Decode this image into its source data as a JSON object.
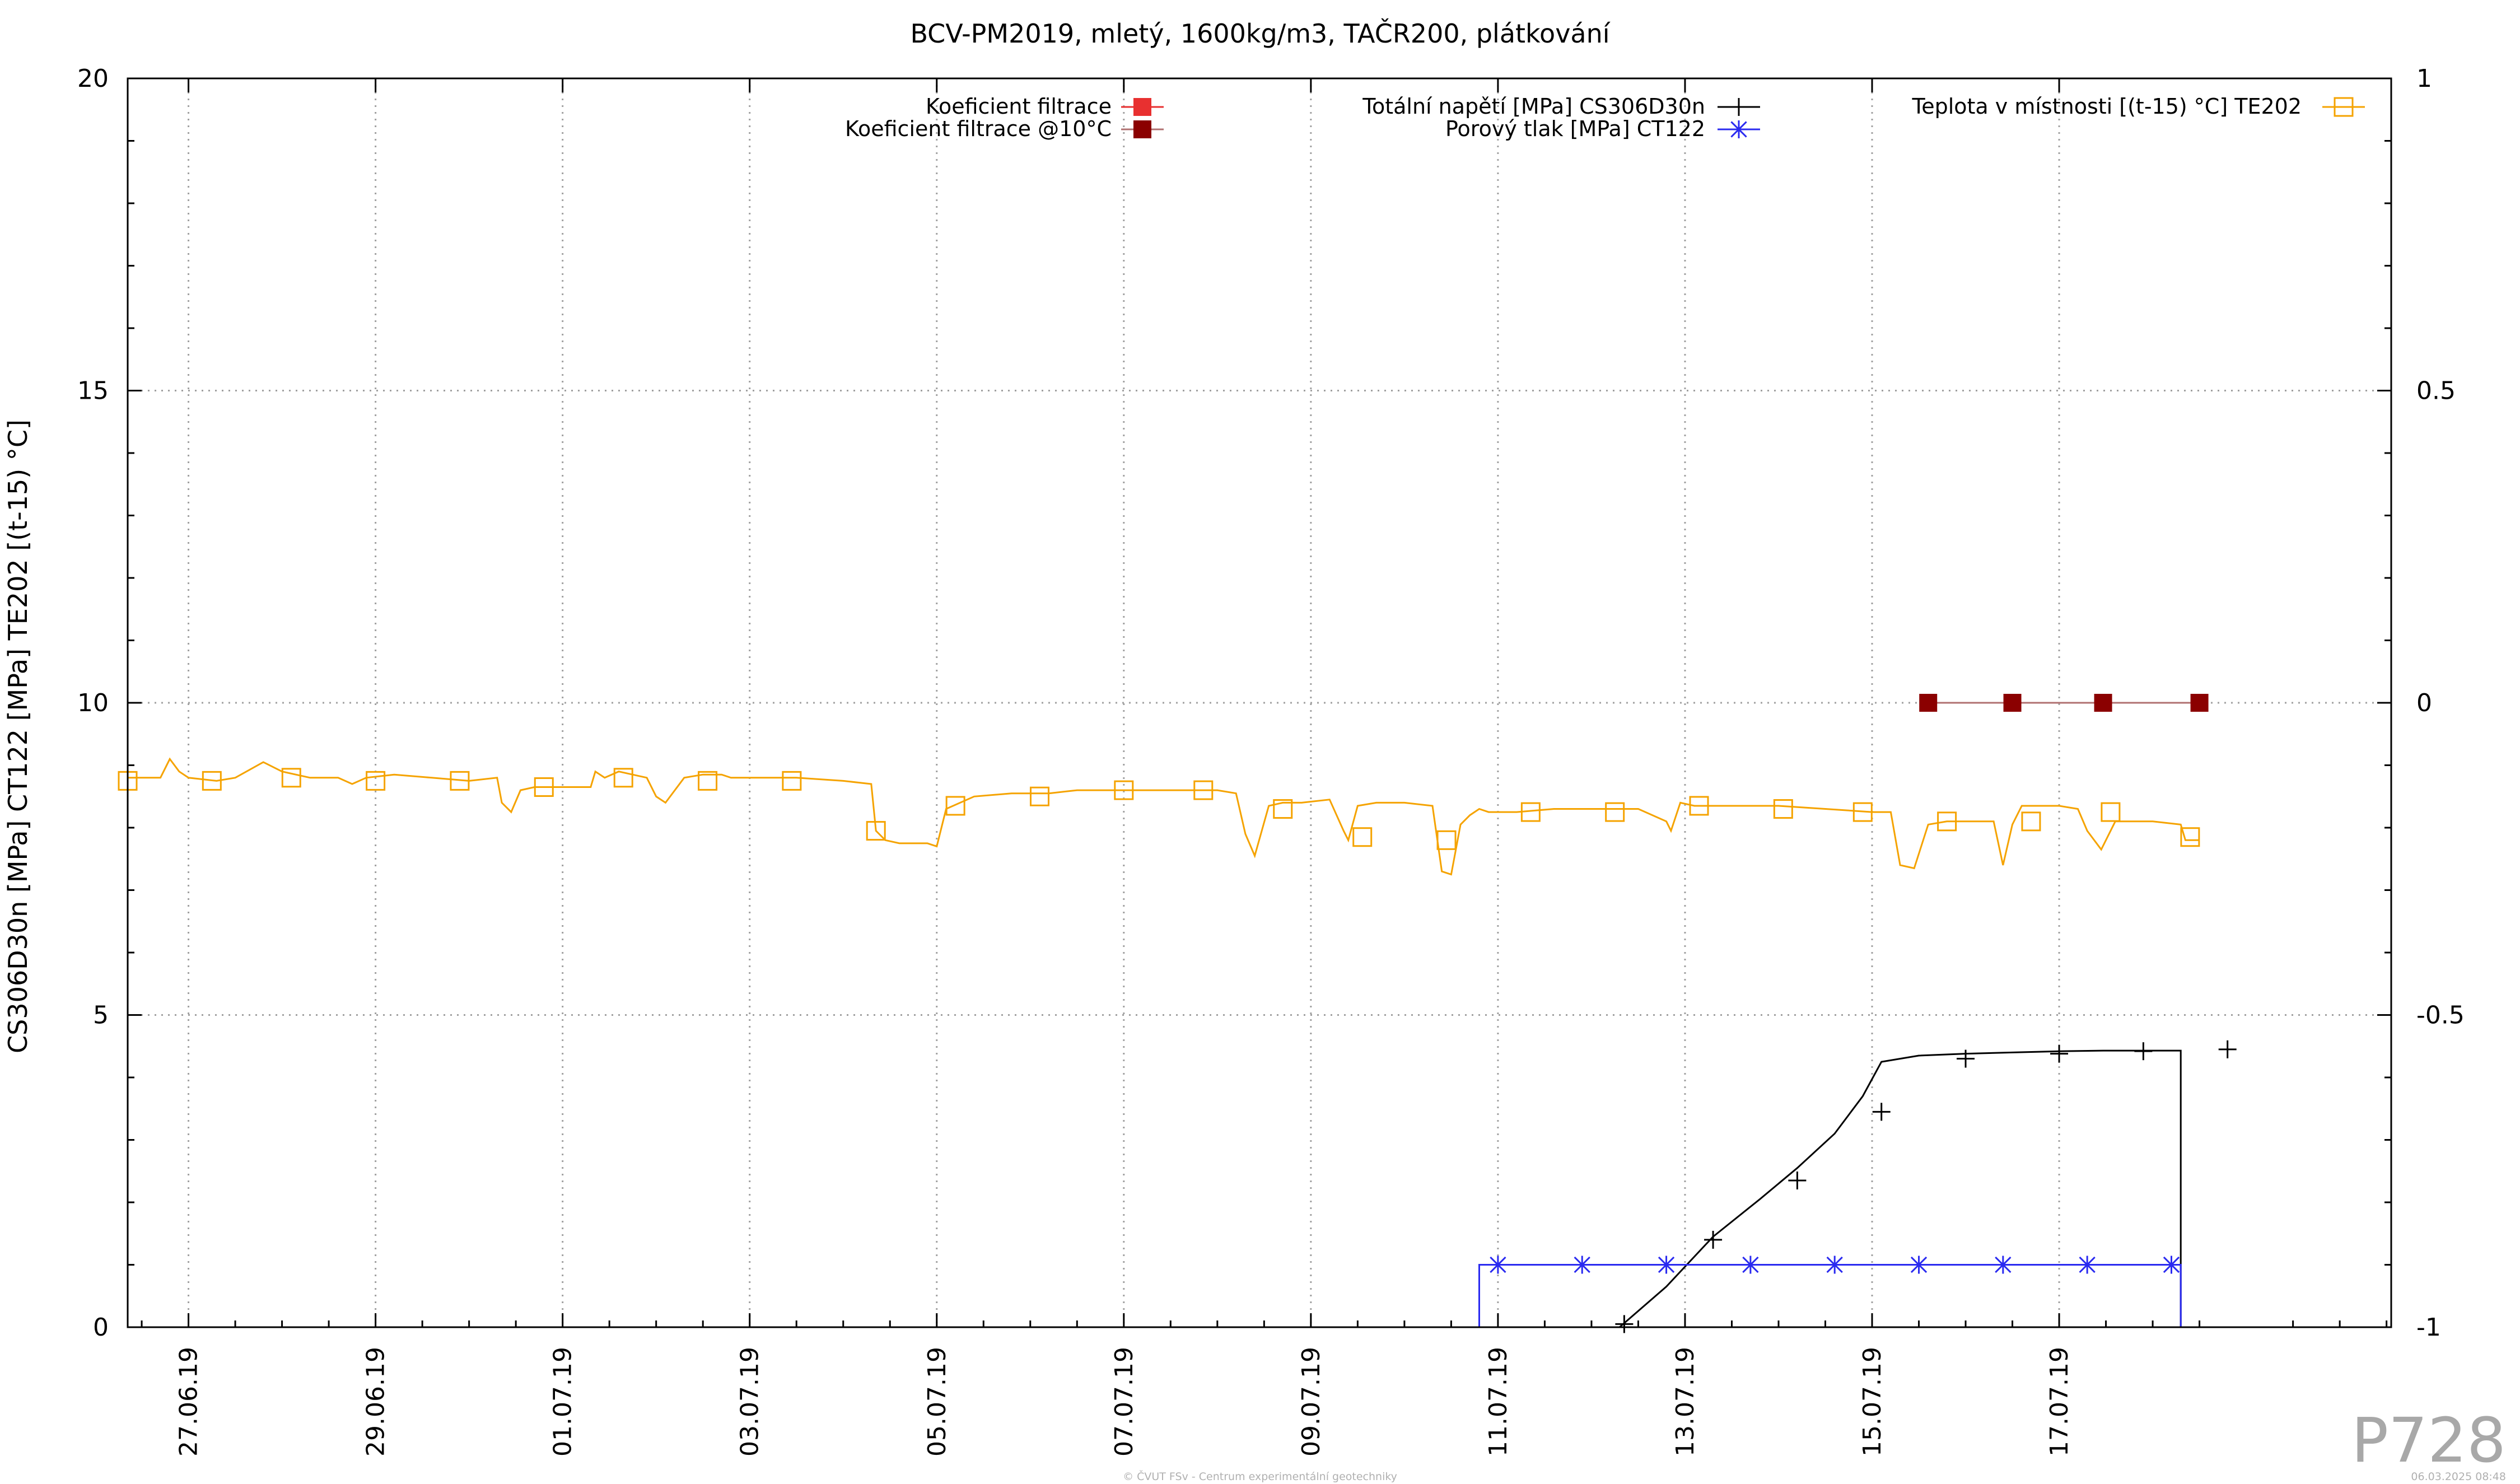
{
  "chart_data": {
    "type": "line",
    "title": "BCV-PM2019, mletý, 1600kg/m3, TAČR200, plátkování",
    "ylabel": "CS306D30n [MPa] CT122 [MPa] TE202 [(t-15) °C]",
    "xlabel": "",
    "ylim": [
      0,
      20
    ],
    "y2lim": [
      -1,
      1
    ],
    "xlim": [
      -0.65,
      23.55
    ],
    "yticks": [
      "0",
      "5",
      "10",
      "15",
      "20"
    ],
    "y2ticks": [
      "-1",
      "-0.5",
      "0",
      "0.5",
      "1"
    ],
    "xticks": [
      {
        "day": 0,
        "label": "27.06.19"
      },
      {
        "day": 2,
        "label": "29.06.19"
      },
      {
        "day": 4,
        "label": "01.07.19"
      },
      {
        "day": 6,
        "label": "03.07.19"
      },
      {
        "day": 8,
        "label": "05.07.19"
      },
      {
        "day": 10,
        "label": "07.07.19"
      },
      {
        "day": 12,
        "label": "09.07.19"
      },
      {
        "day": 14,
        "label": "11.07.19"
      },
      {
        "day": 16,
        "label": "13.07.19"
      },
      {
        "day": 18,
        "label": "15.07.19"
      },
      {
        "day": 20,
        "label": "17.07.19"
      }
    ],
    "grid": true,
    "legend_position": "top",
    "series": [
      {
        "name": "Koeficient filtrace",
        "color": "#e83030",
        "axis": "y2",
        "marker": "square-filled",
        "x": [],
        "y": []
      },
      {
        "name": "Koeficient filtrace @10°C",
        "color": "#8b0000",
        "axis": "y2",
        "marker": "square-filled",
        "line_color": "#b07070",
        "x": [
          18.6,
          19.5,
          20.47,
          21.5
        ],
        "y": [
          0,
          0,
          0,
          0
        ]
      },
      {
        "name": "Totální napětí [MPa] CS306D30n",
        "color": "#000000",
        "axis": "y",
        "marker": "plus",
        "x": [
          15.3,
          15.8,
          16.3,
          16.8,
          17.2,
          17.6,
          17.9,
          18.1,
          18.5,
          19.0,
          19.5,
          20.0,
          20.47
        ],
        "y": [
          0.0,
          0.65,
          1.45,
          2.05,
          2.55,
          3.1,
          3.7,
          4.25,
          4.35,
          4.38,
          4.4,
          4.42,
          4.43
        ],
        "markers_x": [
          15.35,
          16.3,
          17.2,
          18.1,
          19.0,
          20.0,
          20.9,
          21.8
        ],
        "markers_y": [
          0.05,
          1.4,
          2.35,
          3.45,
          4.3,
          4.38,
          4.42,
          4.45
        ],
        "end_x": 21.3
      },
      {
        "name": "Porový tlak [MPa] CT122",
        "color": "#2a2af0",
        "axis": "y",
        "marker": "asterisk",
        "x": [
          13.8,
          13.8,
          21.3,
          21.3
        ],
        "y": [
          0,
          1.0,
          1.0,
          0
        ],
        "markers_x": [
          14.0,
          14.9,
          15.8,
          16.7,
          17.6,
          18.5,
          19.4,
          20.3,
          21.2
        ],
        "markers_y": [
          1.0,
          1.0,
          1.0,
          1.0,
          1.0,
          1.0,
          1.0,
          1.0,
          1.0
        ]
      },
      {
        "name": "Teplota v místnosti [(t-15) °C] TE202",
        "color": "#f5a300",
        "axis": "y",
        "marker": "square-open",
        "x": [
          -0.65,
          -0.3,
          -0.2,
          -0.1,
          0.0,
          0.3,
          0.5,
          0.8,
          1.0,
          1.3,
          1.6,
          1.75,
          1.9,
          2.2,
          2.6,
          3.0,
          3.3,
          3.35,
          3.45,
          3.55,
          3.7,
          4.0,
          4.3,
          4.35,
          4.45,
          4.6,
          4.9,
          5.0,
          5.1,
          5.3,
          5.5,
          5.7,
          5.8,
          6.0,
          6.5,
          7.0,
          7.3,
          7.35,
          7.45,
          7.6,
          7.9,
          8.0,
          8.1,
          8.4,
          8.8,
          9.2,
          9.5,
          10.0,
          10.5,
          11.0,
          11.2,
          11.3,
          11.4,
          11.55,
          11.7,
          11.9,
          12.2,
          12.35,
          12.4,
          12.5,
          12.7,
          13.0,
          13.3,
          13.4,
          13.5,
          13.6,
          13.7,
          13.8,
          13.9,
          14.2,
          14.6,
          15.0,
          15.5,
          15.8,
          15.85,
          15.95,
          16.1,
          16.3,
          16.6,
          17.0,
          17.5,
          18.0,
          18.2,
          18.3,
          18.45,
          18.6,
          18.8,
          19.0,
          19.3,
          19.4,
          19.5,
          19.6,
          20.0,
          20.2,
          20.3,
          20.45,
          20.6,
          21.0,
          21.3,
          21.35,
          21.5
        ],
        "y": [
          8.8,
          8.8,
          9.1,
          8.9,
          8.8,
          8.75,
          8.8,
          9.05,
          8.9,
          8.8,
          8.8,
          8.7,
          8.8,
          8.85,
          8.8,
          8.75,
          8.8,
          8.4,
          8.25,
          8.6,
          8.65,
          8.65,
          8.65,
          8.9,
          8.8,
          8.9,
          8.8,
          8.5,
          8.4,
          8.8,
          8.85,
          8.85,
          8.8,
          8.8,
          8.8,
          8.75,
          8.7,
          7.95,
          7.8,
          7.75,
          7.75,
          7.7,
          8.3,
          8.5,
          8.55,
          8.55,
          8.6,
          8.6,
          8.6,
          8.6,
          8.55,
          7.9,
          7.55,
          8.35,
          8.4,
          8.4,
          8.45,
          7.95,
          7.8,
          8.35,
          8.4,
          8.4,
          8.35,
          7.3,
          7.25,
          8.05,
          8.2,
          8.3,
          8.25,
          8.25,
          8.3,
          8.3,
          8.3,
          8.1,
          7.95,
          8.4,
          8.35,
          8.35,
          8.35,
          8.35,
          8.3,
          8.25,
          8.25,
          7.4,
          7.35,
          8.05,
          8.1,
          8.1,
          8.1,
          7.4,
          8.05,
          8.35,
          8.35,
          8.3,
          7.95,
          7.65,
          8.1,
          8.1,
          8.05,
          7.8,
          7.8
        ],
        "markers_x": [
          -0.65,
          0.25,
          1.1,
          2.0,
          2.9,
          3.8,
          4.65,
          5.55,
          6.45,
          7.35,
          8.2,
          9.1,
          10.0,
          10.85,
          11.7,
          12.55,
          13.45,
          14.35,
          15.25,
          16.15,
          17.05,
          17.9,
          18.8,
          19.7,
          20.55,
          21.4
        ],
        "markers_y": [
          8.75,
          8.75,
          8.8,
          8.75,
          8.75,
          8.65,
          8.8,
          8.75,
          8.75,
          7.95,
          8.35,
          8.5,
          8.6,
          8.6,
          8.3,
          7.85,
          7.8,
          8.25,
          8.25,
          8.35,
          8.3,
          8.25,
          8.1,
          8.1,
          8.25,
          7.85
        ]
      }
    ]
  },
  "footer": {
    "watermark": "P728",
    "copyright": "© ČVUT FSv - Centrum experimentální geotechniky",
    "timestamp": "06.03.2025 08:48"
  }
}
